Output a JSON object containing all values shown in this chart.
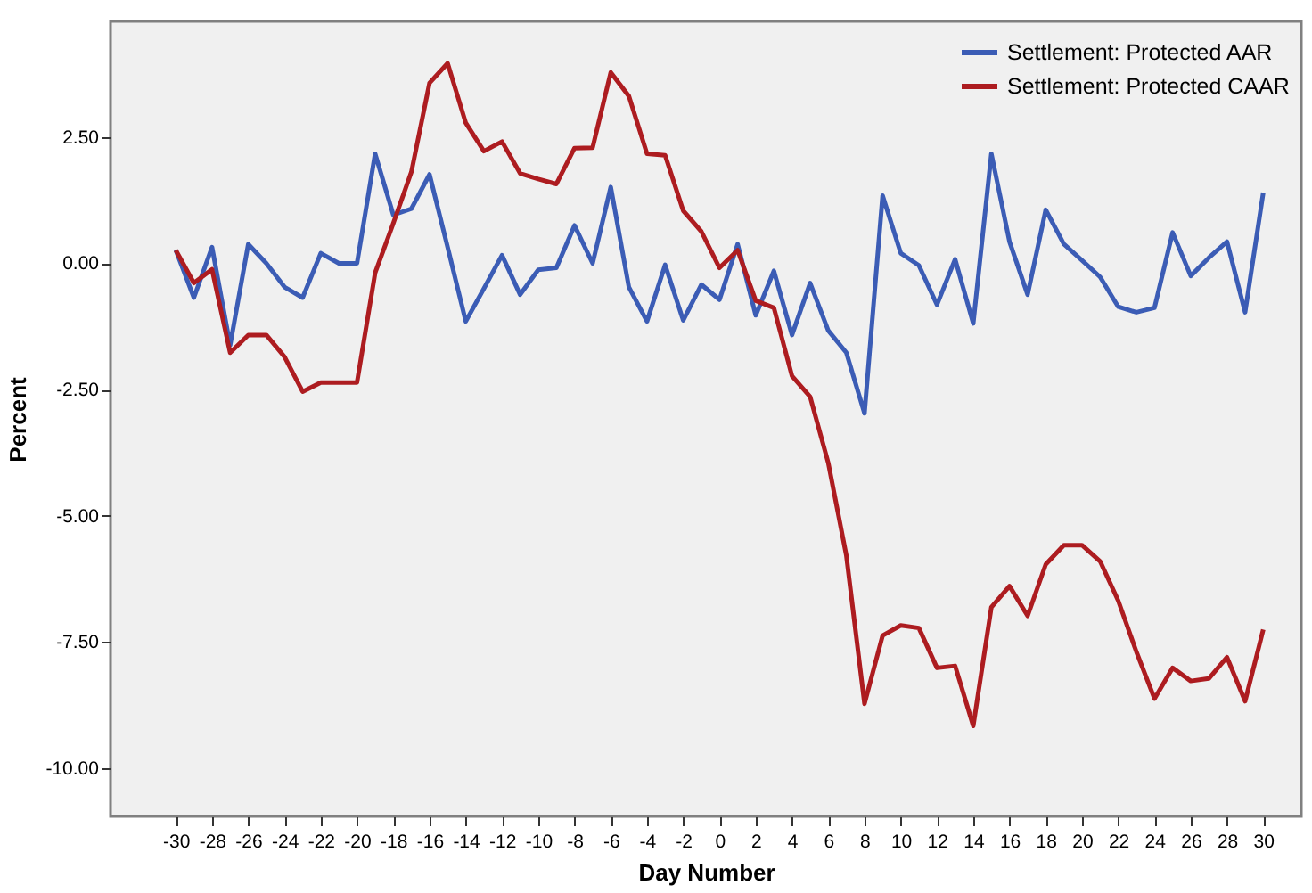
{
  "chart_data": {
    "type": "line",
    "xlabel": "Day Number",
    "ylabel": "Percent",
    "x": [
      -30,
      -29,
      -28,
      -27,
      -26,
      -25,
      -24,
      -23,
      -22,
      -21,
      -20,
      -19,
      -18,
      -17,
      -16,
      -15,
      -14,
      -13,
      -12,
      -11,
      -10,
      -9,
      -8,
      -7,
      -6,
      -5,
      -4,
      -3,
      -2,
      -1,
      0,
      1,
      2,
      3,
      4,
      5,
      6,
      7,
      8,
      9,
      10,
      11,
      12,
      13,
      14,
      15,
      16,
      17,
      18,
      19,
      20,
      21,
      22,
      23,
      24,
      25,
      26,
      27,
      28,
      29,
      30
    ],
    "series": [
      {
        "name": "Settlement: Protected AAR",
        "color": "#3b5cb5",
        "values": [
          0.26,
          -0.68,
          0.32,
          -1.62,
          0.38,
          0,
          -0.47,
          -0.68,
          0.2,
          0,
          0,
          2.17,
          0.96,
          1.08,
          1.76,
          0.32,
          -1.15,
          -0.5,
          0.16,
          -0.62,
          -0.13,
          -0.09,
          0.75,
          0,
          1.51,
          -0.47,
          -1.15,
          -0.03,
          -1.13,
          -0.42,
          -0.72,
          0.38,
          -1.03,
          -0.15,
          -1.42,
          -0.39,
          -1.33,
          -1.77,
          -2.97,
          1.34,
          0.2,
          -0.04,
          -0.82,
          0.08,
          -1.19,
          2.17,
          0.43,
          -0.62,
          1.06,
          0.38,
          0.06,
          -0.27,
          -0.86,
          -0.97,
          -0.88,
          0.61,
          -0.25,
          0.11,
          0.43,
          -0.97,
          1.4
        ]
      },
      {
        "name": "Settlement: Protected CAAR",
        "color": "#ad1c20",
        "values": [
          0.26,
          -0.39,
          -0.12,
          -1.77,
          -1.42,
          -1.42,
          -1.85,
          -2.54,
          -2.36,
          -2.36,
          -2.36,
          -0.19,
          0.79,
          1.81,
          3.57,
          3.96,
          2.78,
          2.22,
          2.41,
          1.78,
          1.67,
          1.57,
          2.28,
          2.29,
          3.78,
          3.31,
          2.17,
          2.14,
          1.04,
          0.63,
          -0.09,
          0.26,
          -0.74,
          -0.88,
          -2.23,
          -2.64,
          -3.95,
          -5.79,
          -8.72,
          -7.37,
          -7.17,
          -7.22,
          -8.01,
          -7.97,
          -9.16,
          -6.81,
          -6.39,
          -6.98,
          -5.96,
          -5.58,
          -5.58,
          -5.9,
          -6.68,
          -7.69,
          -8.62,
          -8.01,
          -8.27,
          -8.22,
          -7.8,
          -8.67,
          -7.25
        ]
      }
    ],
    "xlim": [
      -33.6,
      32.1
    ],
    "xticks": [
      -30,
      -28,
      -26,
      -24,
      -22,
      -20,
      -18,
      -16,
      -14,
      -12,
      -10,
      -8,
      -6,
      -4,
      -2,
      0,
      2,
      4,
      6,
      8,
      10,
      12,
      14,
      16,
      18,
      20,
      22,
      24,
      26,
      28,
      30
    ],
    "ylim": [
      -10.95,
      4.79
    ],
    "yticks": [
      {
        "value": -10,
        "label": "-10.00"
      },
      {
        "value": -7.5,
        "label": "-7.50"
      },
      {
        "value": -5,
        "label": "-5.00"
      },
      {
        "value": -2.5,
        "label": "-2.50"
      },
      {
        "value": 0,
        "label": "0.00"
      },
      {
        "value": 2.5,
        "label": "2.50"
      }
    ],
    "legend": "top right",
    "grid": false,
    "marker": "none",
    "line_style": "solid"
  }
}
